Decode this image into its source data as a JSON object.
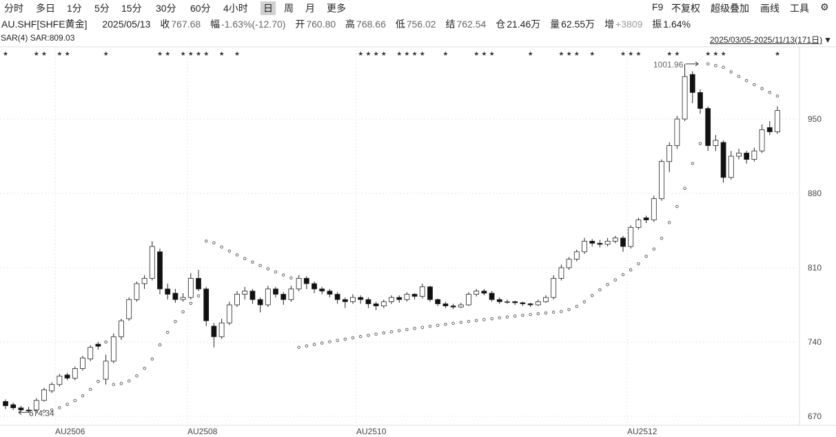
{
  "toolbar": {
    "periods": [
      "分时",
      "多日",
      "1分",
      "5分",
      "15分",
      "30分",
      "60分",
      "4小时",
      "日",
      "周",
      "月",
      "更多"
    ],
    "active_period": "日",
    "right": [
      "F9",
      "不复权",
      "超级叠加",
      "画线",
      "工具"
    ],
    "settings_icon": "gear-icon"
  },
  "info": {
    "symbol": "AU.SHF[SHFE黄金]",
    "date": "2025/05/13",
    "close_label": "收",
    "close": "767.68",
    "change_label": "幅",
    "change": "-1.63%(-12.70)",
    "open_label": "开",
    "open": "760.80",
    "high_label": "高",
    "high": "768.66",
    "low_label": "低",
    "low": "756.02",
    "settle_label": "结",
    "settle": "762.54",
    "oi_label": "仓",
    "oi": "21.46万",
    "volume_label": "量",
    "volume": "62.55万",
    "oi_change_label": "增",
    "oi_change": "+3809",
    "amplitude_label": "振",
    "amplitude": "1.64%"
  },
  "indicator": {
    "name": "SAR(4)",
    "value": "SAR:809.03"
  },
  "range": {
    "label": "2025/03/05-2025/11/13(171日)",
    "dropdown_icon": "triangle-down-icon"
  },
  "colors": {
    "up": "#ffffff",
    "down": "#111111",
    "outline": "#222222",
    "sar": "#555555",
    "grid": "#e6e6e6"
  },
  "chart_data": {
    "type": "candlestick",
    "yticks": [
      950,
      880,
      810,
      740,
      670
    ],
    "ylim": [
      665,
      1010
    ],
    "xlabels": [
      "AU2506",
      "AU2508",
      "AU2510",
      "AU2512"
    ],
    "annotations": [
      {
        "text": "1001.96",
        "value": 1001.96
      },
      {
        "text": "674.34",
        "value": 674.34
      }
    ],
    "candles_ohlc": [
      [
        684,
        686,
        677,
        680
      ],
      [
        681,
        683,
        676,
        678
      ],
      [
        678,
        680,
        674.34,
        676
      ],
      [
        676,
        679,
        674,
        675
      ],
      [
        676,
        687,
        675,
        685
      ],
      [
        685,
        697,
        684,
        695
      ],
      [
        694,
        702,
        692,
        700
      ],
      [
        700,
        710,
        698,
        708
      ],
      [
        709,
        711,
        704,
        706
      ],
      [
        706,
        717,
        704,
        715
      ],
      [
        715,
        727,
        713,
        725
      ],
      [
        724,
        737,
        722,
        735
      ],
      [
        738,
        740,
        733,
        736
      ],
      [
        705,
        728,
        700,
        722
      ],
      [
        722,
        748,
        720,
        745
      ],
      [
        745,
        762,
        742,
        760
      ],
      [
        762,
        782,
        760,
        780
      ],
      [
        780,
        797,
        778,
        795
      ],
      [
        795,
        803,
        790,
        800
      ],
      [
        800,
        835,
        798,
        830
      ],
      [
        825,
        828,
        785,
        790
      ],
      [
        790,
        795,
        780,
        785
      ],
      [
        786,
        790,
        777,
        780
      ],
      [
        780,
        786,
        778,
        782
      ],
      [
        782,
        805,
        780,
        800
      ],
      [
        800,
        808,
        788,
        790
      ],
      [
        790,
        792,
        755,
        760
      ],
      [
        755,
        758,
        735,
        745
      ],
      [
        745,
        762,
        743,
        758
      ],
      [
        758,
        778,
        756,
        775
      ],
      [
        775,
        788,
        773,
        785
      ],
      [
        785,
        792,
        780,
        788
      ],
      [
        788,
        790,
        776,
        780
      ],
      [
        780,
        782,
        768,
        775
      ],
      [
        775,
        793,
        773,
        790
      ],
      [
        790,
        792,
        782,
        785
      ],
      [
        785,
        787,
        775,
        780
      ],
      [
        780,
        793,
        778,
        790
      ],
      [
        790,
        803,
        788,
        800
      ],
      [
        800,
        802,
        790,
        795
      ],
      [
        795,
        797,
        786,
        790
      ],
      [
        790,
        792,
        785,
        788
      ],
      [
        788,
        790,
        782,
        785
      ],
      [
        785,
        787,
        776,
        780
      ],
      [
        780,
        782,
        772,
        778
      ],
      [
        778,
        785,
        776,
        782
      ],
      [
        782,
        784,
        776,
        780
      ],
      [
        780,
        782,
        772,
        776
      ],
      [
        776,
        778,
        770,
        774
      ],
      [
        774,
        780,
        772,
        778
      ],
      [
        778,
        784,
        776,
        782
      ],
      [
        782,
        784,
        777,
        780
      ],
      [
        780,
        787,
        778,
        785
      ],
      [
        785,
        786,
        780,
        783
      ],
      [
        783,
        795,
        781,
        792
      ],
      [
        792,
        793,
        778,
        780
      ],
      [
        780,
        781,
        774,
        776
      ],
      [
        776,
        778,
        772,
        774
      ],
      [
        774,
        776,
        771,
        773
      ],
      [
        773,
        777,
        772,
        775
      ],
      [
        775,
        787,
        774,
        785
      ],
      [
        785,
        790,
        783,
        788
      ],
      [
        788,
        790,
        784,
        786
      ],
      [
        786,
        788,
        778,
        780
      ],
      [
        780,
        782,
        776,
        778
      ],
      [
        778,
        780,
        776,
        778
      ],
      [
        778,
        779,
        775,
        777
      ],
      [
        777,
        778,
        774,
        776
      ],
      [
        776,
        777,
        773,
        775
      ],
      [
        775,
        780,
        774,
        778
      ],
      [
        778,
        784,
        777,
        782
      ],
      [
        782,
        803,
        780,
        800
      ],
      [
        800,
        813,
        798,
        810
      ],
      [
        810,
        820,
        808,
        818
      ],
      [
        818,
        827,
        816,
        825
      ],
      [
        825,
        838,
        823,
        835
      ],
      [
        835,
        837,
        830,
        833
      ],
      [
        833,
        836,
        829,
        832
      ],
      [
        832,
        838,
        830,
        835
      ],
      [
        835,
        840,
        833,
        838
      ],
      [
        838,
        840,
        825,
        830
      ],
      [
        830,
        850,
        828,
        848
      ],
      [
        848,
        857,
        846,
        855
      ],
      [
        857,
        859,
        852,
        855
      ],
      [
        855,
        878,
        853,
        875
      ],
      [
        875,
        912,
        873,
        910
      ],
      [
        910,
        928,
        900,
        925
      ],
      [
        925,
        953,
        922,
        950
      ],
      [
        950,
        1001.96,
        948,
        990
      ],
      [
        992,
        995,
        965,
        975
      ],
      [
        975,
        978,
        955,
        960
      ],
      [
        960,
        962,
        920,
        925
      ],
      [
        925,
        935,
        920,
        930
      ],
      [
        928,
        930,
        890,
        895
      ],
      [
        895,
        920,
        893,
        915
      ],
      [
        915,
        922,
        912,
        918
      ],
      [
        918,
        920,
        908,
        912
      ],
      [
        912,
        923,
        910,
        920
      ],
      [
        920,
        945,
        918,
        940
      ],
      [
        942,
        948,
        935,
        938
      ],
      [
        938,
        962,
        936,
        958
      ]
    ],
    "star_marker": "★"
  }
}
